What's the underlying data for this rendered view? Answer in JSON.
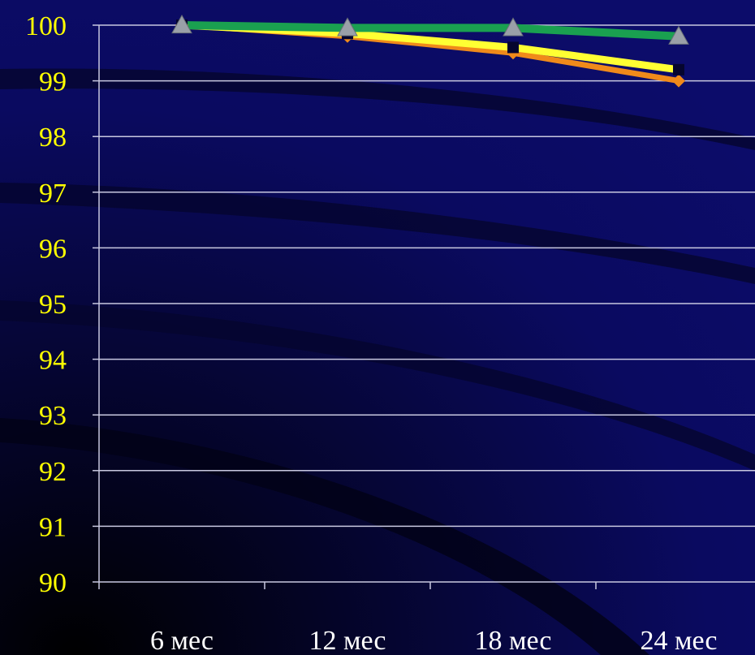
{
  "chart_data": {
    "type": "line",
    "categories": [
      "6 мес",
      "12 мес",
      "18 мес",
      "24 мес"
    ],
    "ylim": [
      90,
      100
    ],
    "yticks": [
      "100",
      "99",
      "98",
      "97",
      "96",
      "95",
      "94",
      "93",
      "92",
      "91",
      "90"
    ],
    "grid": true,
    "legend": "none",
    "series": [
      {
        "values": [
          100,
          99.8,
          99.5,
          99.0
        ],
        "color": "#f08a1a",
        "marker": "diamond"
      },
      {
        "values": [
          100,
          99.85,
          99.6,
          99.2
        ],
        "color": "#ffff33",
        "marker": "square"
      },
      {
        "values": [
          100,
          99.95,
          99.95,
          99.8
        ],
        "color": "#1aa050",
        "marker": "triangle"
      }
    ],
    "colors": {
      "background": "#0a0a5c",
      "ytick_text": "#ffff00",
      "xtick_text": "#ffffff",
      "grid": "#c8c8e0",
      "marker_fill": "#9aa0a8"
    }
  }
}
